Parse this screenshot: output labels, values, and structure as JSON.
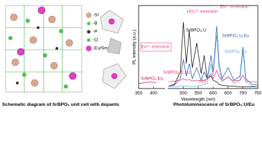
{
  "diagram": {
    "legend": [
      "-Sr",
      "-B",
      "-P",
      "-O",
      "-Eu/Sm"
    ],
    "caption": "Schematic diagram of SrBPO₅ unit cell with dopants"
  },
  "chart_data": {
    "type": "line",
    "x_label": "Wavelength (nm)",
    "y_label": "PL intensity (a.u.)",
    "caption": "Photoluminescence of SrBPO₅:U/Eu",
    "xlim": [
      350,
      750
    ],
    "xticks": [
      350,
      400,
      500,
      550,
      600,
      650,
      700,
      750
    ],
    "ylim": [
      0,
      100
    ],
    "x": [
      350,
      370,
      390,
      410,
      450,
      470,
      490,
      500,
      510,
      520,
      530,
      545,
      560,
      570,
      580,
      593,
      600,
      612,
      620,
      630,
      650,
      670,
      690,
      700,
      710,
      730,
      750
    ],
    "series": [
      {
        "name": "SrBPO₅:U",
        "color": "#111111",
        "values": [
          null,
          null,
          null,
          null,
          3,
          5,
          20,
          80,
          30,
          70,
          25,
          55,
          18,
          40,
          12,
          15,
          10,
          8,
          5,
          4,
          3,
          3,
          2,
          2,
          2,
          2,
          2
        ]
      },
      {
        "name": "SrBPO₅:U,Eu",
        "color": "#2a5db0",
        "values": [
          null,
          null,
          null,
          null,
          3,
          4,
          12,
          35,
          15,
          30,
          12,
          25,
          10,
          20,
          12,
          40,
          20,
          75,
          30,
          12,
          25,
          10,
          15,
          50,
          12,
          5,
          4
        ]
      },
      {
        "name": "SrBPO₅:Eu",
        "color": "#6fb0e0",
        "values": [
          null,
          null,
          null,
          null,
          2,
          2,
          3,
          3,
          3,
          3,
          3,
          3,
          4,
          5,
          6,
          30,
          15,
          65,
          22,
          8,
          15,
          6,
          10,
          45,
          8,
          3,
          2
        ]
      },
      {
        "name": "SrBPO₅:U,Eu",
        "color": "#e0407a",
        "values": [
          null,
          null,
          null,
          null,
          8,
          9,
          10,
          12,
          10,
          11,
          9,
          10,
          9,
          10,
          11,
          18,
          12,
          22,
          14,
          10,
          13,
          9,
          10,
          16,
          9,
          8,
          8
        ]
      },
      {
        "name": "SrBPO₅:Eu",
        "color": "#c02060",
        "values": [
          6,
          7,
          8,
          7,
          null,
          null,
          null,
          null,
          null,
          null,
          null,
          null,
          null,
          null,
          null,
          null,
          null,
          null,
          null,
          null,
          null,
          null,
          null,
          null,
          null,
          null,
          null
        ]
      }
    ],
    "annotations": [
      "Eu²⁺ emission",
      "UO₂²⁺ emission",
      "Eu³⁺ emission",
      "×15"
    ]
  }
}
